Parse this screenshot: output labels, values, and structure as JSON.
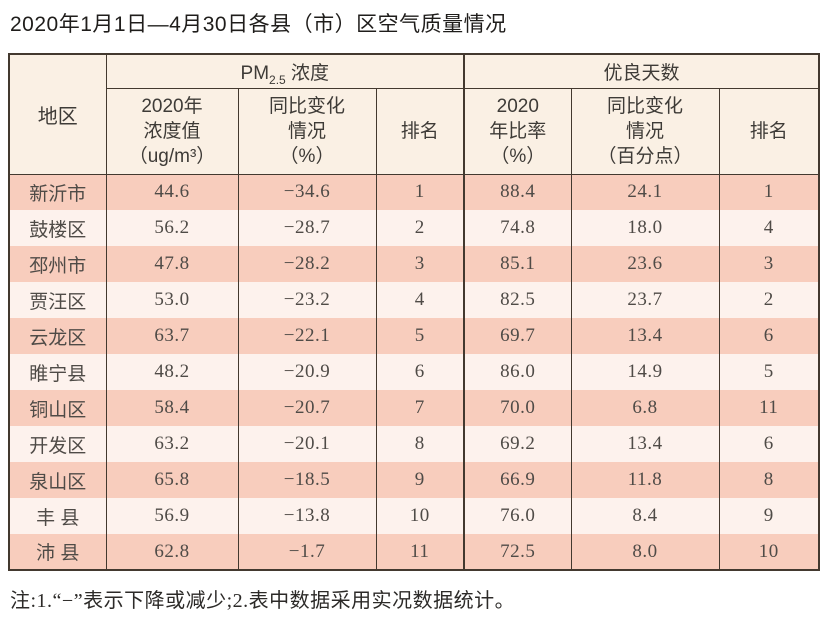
{
  "title": "2020年1月1日—4月30日各县（市）区空气质量情况",
  "table": {
    "header": {
      "region": "地区",
      "pm_section": {
        "prefix": "PM",
        "sub": "2.5",
        "suffix": " 浓度"
      },
      "good_days_section": "优良天数",
      "pm_value": {
        "line1": "2020年",
        "line2": "浓度值",
        "line3": "（ug/m³）"
      },
      "pm_change": {
        "line1": "同比变化",
        "line2": "情况",
        "line3": "（%）"
      },
      "pm_rank": "排名",
      "gd_rate": {
        "line1": "2020",
        "line2": "年比率",
        "line3": "（%）"
      },
      "gd_change": {
        "line1": "同比变化",
        "line2": "情况",
        "line3": "（百分点）"
      },
      "gd_rank": "排名"
    },
    "rows": [
      {
        "region": "新沂市",
        "pm_value": "44.6",
        "pm_change": "−34.6",
        "pm_rank": "1",
        "gd_rate": "88.4",
        "gd_change": "24.1",
        "gd_rank": "1"
      },
      {
        "region": "鼓楼区",
        "pm_value": "56.2",
        "pm_change": "−28.7",
        "pm_rank": "2",
        "gd_rate": "74.8",
        "gd_change": "18.0",
        "gd_rank": "4"
      },
      {
        "region": "邳州市",
        "pm_value": "47.8",
        "pm_change": "−28.2",
        "pm_rank": "3",
        "gd_rate": "85.1",
        "gd_change": "23.6",
        "gd_rank": "3"
      },
      {
        "region": "贾汪区",
        "pm_value": "53.0",
        "pm_change": "−23.2",
        "pm_rank": "4",
        "gd_rate": "82.5",
        "gd_change": "23.7",
        "gd_rank": "2"
      },
      {
        "region": "云龙区",
        "pm_value": "63.7",
        "pm_change": "−22.1",
        "pm_rank": "5",
        "gd_rate": "69.7",
        "gd_change": "13.4",
        "gd_rank": "6"
      },
      {
        "region": "睢宁县",
        "pm_value": "48.2",
        "pm_change": "−20.9",
        "pm_rank": "6",
        "gd_rate": "86.0",
        "gd_change": "14.9",
        "gd_rank": "5"
      },
      {
        "region": "铜山区",
        "pm_value": "58.4",
        "pm_change": "−20.7",
        "pm_rank": "7",
        "gd_rate": "70.0",
        "gd_change": "6.8",
        "gd_rank": "11"
      },
      {
        "region": "开发区",
        "pm_value": "63.2",
        "pm_change": "−20.1",
        "pm_rank": "8",
        "gd_rate": "69.2",
        "gd_change": "13.4",
        "gd_rank": "6"
      },
      {
        "region": "泉山区",
        "pm_value": "65.8",
        "pm_change": "−18.5",
        "pm_rank": "9",
        "gd_rate": "66.9",
        "gd_change": "11.8",
        "gd_rank": "8"
      },
      {
        "region": "丰 县",
        "pm_value": "56.9",
        "pm_change": "−13.8",
        "pm_rank": "10",
        "gd_rate": "76.0",
        "gd_change": "8.4",
        "gd_rank": "9"
      },
      {
        "region": "沛 县",
        "pm_value": "62.8",
        "pm_change": "−1.7",
        "pm_rank": "11",
        "gd_rate": "72.5",
        "gd_change": "8.0",
        "gd_rank": "10"
      }
    ]
  },
  "note": "注:1.“−”表示下降或减少;2.表中数据采用实况数据统计。",
  "colors": {
    "row_odd": "#f8cdbd",
    "row_even": "#fdf2ed",
    "header_bg": "#faf0e4",
    "border": "#43392f",
    "text": "#4f4b47"
  },
  "chart_data": {
    "type": "table",
    "title": "2020年1月1日—4月30日各县（市）区空气质量情况",
    "columns": [
      "地区",
      "PM2.5 2020年浓度值(ug/m³)",
      "PM2.5 同比变化情况(%)",
      "PM2.5 排名",
      "优良天数 2020年比率(%)",
      "优良天数 同比变化情况(百分点)",
      "优良天数 排名"
    ],
    "rows": [
      [
        "新沂市",
        44.6,
        -34.6,
        1,
        88.4,
        24.1,
        1
      ],
      [
        "鼓楼区",
        56.2,
        -28.7,
        2,
        74.8,
        18.0,
        4
      ],
      [
        "邳州市",
        47.8,
        -28.2,
        3,
        85.1,
        23.6,
        3
      ],
      [
        "贾汪区",
        53.0,
        -23.2,
        4,
        82.5,
        23.7,
        2
      ],
      [
        "云龙区",
        63.7,
        -22.1,
        5,
        69.7,
        13.4,
        6
      ],
      [
        "睢宁县",
        48.2,
        -20.9,
        6,
        86.0,
        14.9,
        5
      ],
      [
        "铜山区",
        58.4,
        -20.7,
        7,
        70.0,
        6.8,
        11
      ],
      [
        "开发区",
        63.2,
        -20.1,
        8,
        69.2,
        13.4,
        6
      ],
      [
        "泉山区",
        65.8,
        -18.5,
        9,
        66.9,
        11.8,
        8
      ],
      [
        "丰县",
        56.9,
        -13.8,
        10,
        76.0,
        8.4,
        9
      ],
      [
        "沛县",
        62.8,
        -1.7,
        11,
        72.5,
        8.0,
        10
      ]
    ]
  }
}
